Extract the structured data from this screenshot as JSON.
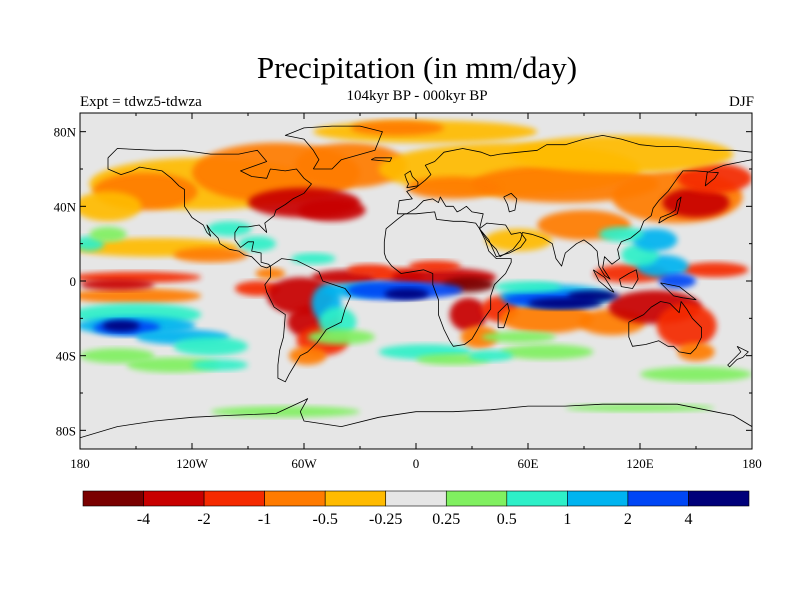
{
  "title": "Precipitation (in mm/day)",
  "subtitle": "104kyr BP - 000kyr BP",
  "left_label": "Expt = tdwz5-tdwza",
  "right_label": "DJF",
  "map": {
    "projection": "cylindrical-equidistant",
    "lon_range": [
      -180,
      180
    ],
    "lat_range": [
      -90,
      90
    ],
    "background_color": "#e6e6e6",
    "coastline_color": "#000000",
    "x_ticks": [
      {
        "lon": -180,
        "label": "180"
      },
      {
        "lon": -120,
        "label": "120W"
      },
      {
        "lon": -60,
        "label": "60W"
      },
      {
        "lon": 0,
        "label": "0"
      },
      {
        "lon": 60,
        "label": "60E"
      },
      {
        "lon": 120,
        "label": "120E"
      },
      {
        "lon": 180,
        "label": "180"
      }
    ],
    "y_ticks": [
      {
        "lat": 80,
        "label": "80N"
      },
      {
        "lat": 40,
        "label": "40N"
      },
      {
        "lat": 0,
        "label": "0"
      },
      {
        "lat": -40,
        "label": "40S"
      },
      {
        "lat": -80,
        "label": "80S"
      }
    ]
  },
  "colorbar": {
    "colors": [
      "#7a0000",
      "#c80000",
      "#f52a00",
      "#ff7b00",
      "#ffbb00",
      "#e6e6e6",
      "#80f060",
      "#2ef0c8",
      "#00b4f0",
      "#0046f5",
      "#00007a"
    ],
    "labels": [
      "-4",
      "-2",
      "-1",
      "-0.5",
      "-0.25",
      "0.25",
      "0.5",
      "1",
      "2",
      "4"
    ]
  }
}
